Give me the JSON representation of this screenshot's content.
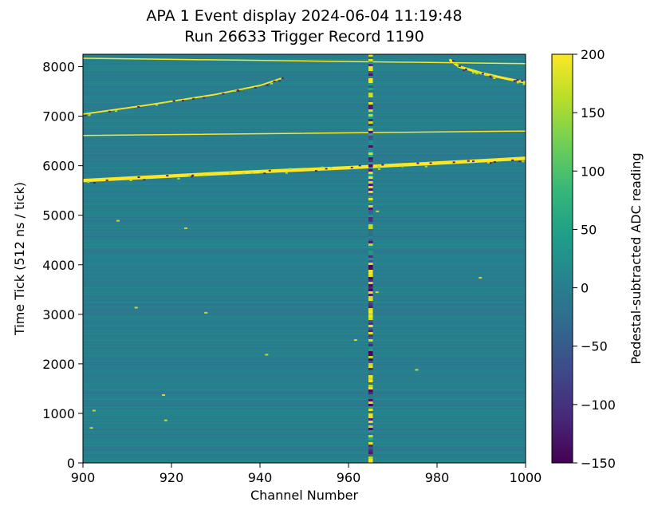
{
  "chart_data": {
    "type": "heatmap",
    "title": "APA 1 Event display 2024-06-04 11:19:48",
    "subtitle": "Run 26633 Trigger Record 1190",
    "xlabel": "Channel Number",
    "ylabel": "Time Tick (512 ns / tick)",
    "xlim": [
      900,
      1000
    ],
    "ylim": [
      0,
      8250
    ],
    "x_ticks": [
      900,
      920,
      940,
      960,
      980,
      1000
    ],
    "y_ticks": [
      0,
      1000,
      2000,
      3000,
      4000,
      5000,
      6000,
      7000,
      8000
    ],
    "background_value": 0,
    "colorbar": {
      "label": "Pedestal-subtracted ADC reading",
      "range": [
        -150,
        200
      ],
      "ticks": [
        -150,
        -100,
        -50,
        0,
        50,
        100,
        150,
        200
      ],
      "colormap": "viridis",
      "stops": [
        "#440154",
        "#482878",
        "#3e4989",
        "#31688e",
        "#26828e",
        "#1f9e89",
        "#35b779",
        "#6ece58",
        "#b5de2b",
        "#fde725"
      ]
    },
    "features": [
      {
        "kind": "track",
        "description_value": 200,
        "points": [
          [
            900,
            5700
          ],
          [
            915,
            5770
          ],
          [
            930,
            5840
          ],
          [
            945,
            5900
          ],
          [
            960,
            5960
          ],
          [
            975,
            6030
          ],
          [
            990,
            6100
          ],
          [
            1000,
            6150
          ]
        ],
        "thickness": 70
      },
      {
        "kind": "track",
        "description_value": 200,
        "points": [
          [
            900,
            7040
          ],
          [
            915,
            7230
          ],
          [
            930,
            7440
          ],
          [
            940,
            7620
          ],
          [
            945,
            7770
          ]
        ],
        "thickness": 30
      },
      {
        "kind": "track",
        "description_value": 200,
        "points": [
          [
            983,
            8130
          ],
          [
            985,
            8000
          ],
          [
            990,
            7870
          ],
          [
            995,
            7770
          ],
          [
            1000,
            7680
          ]
        ],
        "thickness": 50
      },
      {
        "kind": "line",
        "description_value": 200,
        "points": [
          [
            900,
            8170
          ],
          [
            1000,
            8060
          ]
        ],
        "thickness": 14
      },
      {
        "kind": "line",
        "description_value": 200,
        "points": [
          [
            900,
            6610
          ],
          [
            1000,
            6700
          ]
        ],
        "thickness": 14
      },
      {
        "kind": "channel-column",
        "channel": 965,
        "range": [
          0,
          8250
        ]
      }
    ]
  }
}
